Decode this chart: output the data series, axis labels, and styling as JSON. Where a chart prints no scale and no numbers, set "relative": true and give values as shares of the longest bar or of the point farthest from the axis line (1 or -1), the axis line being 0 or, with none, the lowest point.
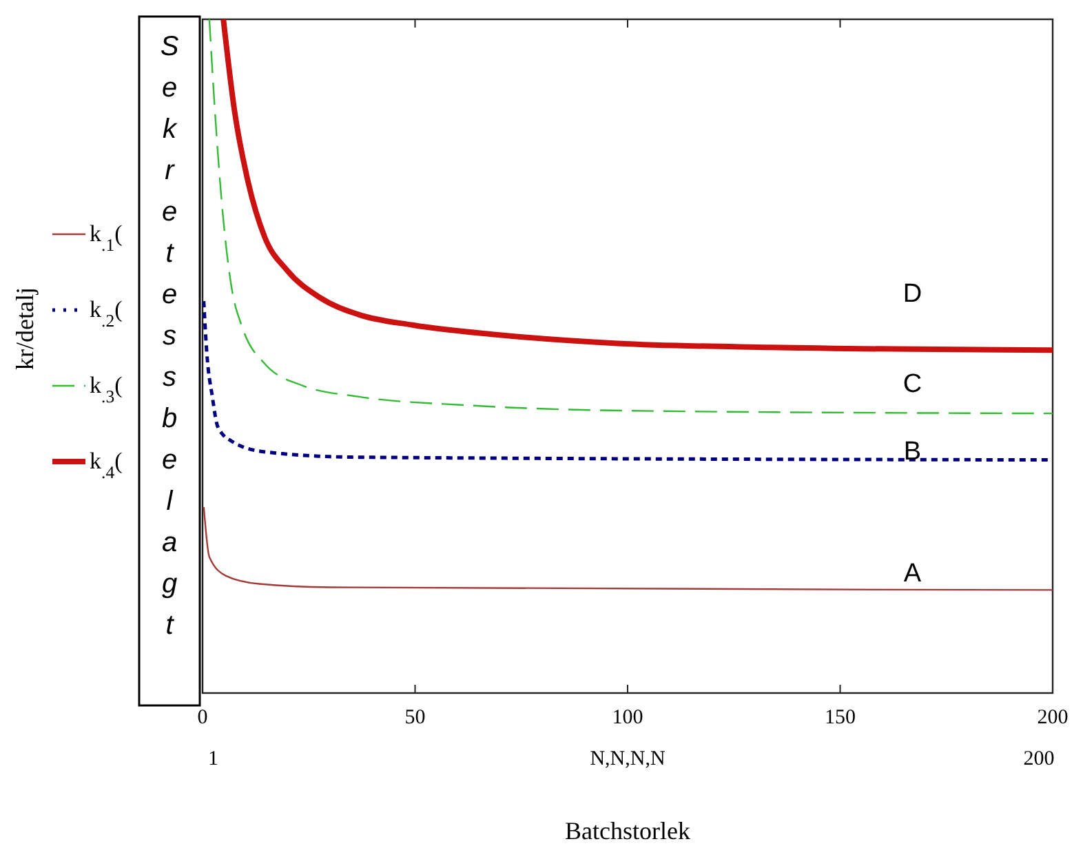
{
  "chart_data": {
    "type": "line",
    "relative": true,
    "xlabel": "Batchstorlek",
    "xlim": [
      0,
      200
    ],
    "xticks": [
      0,
      50,
      100,
      150,
      200
    ],
    "grid": false,
    "legend": "left",
    "marker": "none",
    "series": [
      {
        "name": "k$_{.1}$(",
        "color": "#a33a3a",
        "line_style": "solid",
        "x": [
          0.3,
          1.6,
          5.5,
          13.3,
          30,
          200
        ],
        "values": [
          0.276,
          0.202,
          0.174,
          0.162,
          0.157,
          0.153
        ]
      },
      {
        "name": "k$_{.2}$(",
        "color": "#000080",
        "line_style": "dotted",
        "x": [
          0.3,
          1,
          2.3,
          3.6,
          6.8,
          14.6,
          36.6,
          200
        ],
        "values": [
          0.579,
          0.505,
          0.44,
          0.395,
          0.374,
          0.358,
          0.35,
          0.346
        ]
      },
      {
        "name": "k$_{.3}$(",
        "color": "#33bb33",
        "line_style": "dashed",
        "x": [
          1.6,
          2.9,
          4.9,
          6.8,
          9.4,
          14.6,
          23.7,
          36.6,
          62.6,
          101,
          200
        ],
        "values": [
          1.0,
          0.865,
          0.702,
          0.603,
          0.542,
          0.489,
          0.456,
          0.44,
          0.427,
          0.419,
          0.415
        ]
      },
      {
        "name": "k$_{.4}$(",
        "color": "#cc1111",
        "line_style": "solid",
        "x": [
          4.9,
          7.5,
          10.7,
          14.6,
          19.8,
          27.6,
          36.6,
          49.6,
          69,
          97.6,
          133.9,
          200
        ],
        "values": [
          1.0,
          0.865,
          0.759,
          0.677,
          0.628,
          0.587,
          0.562,
          0.546,
          0.532,
          0.519,
          0.513,
          0.509
        ]
      }
    ],
    "annotations": [
      "D",
      "C",
      "B",
      "A",
      "1",
      "N,N,N,N",
      "200",
      "Sekretessbelagt",
      "kr/detalj"
    ]
  }
}
